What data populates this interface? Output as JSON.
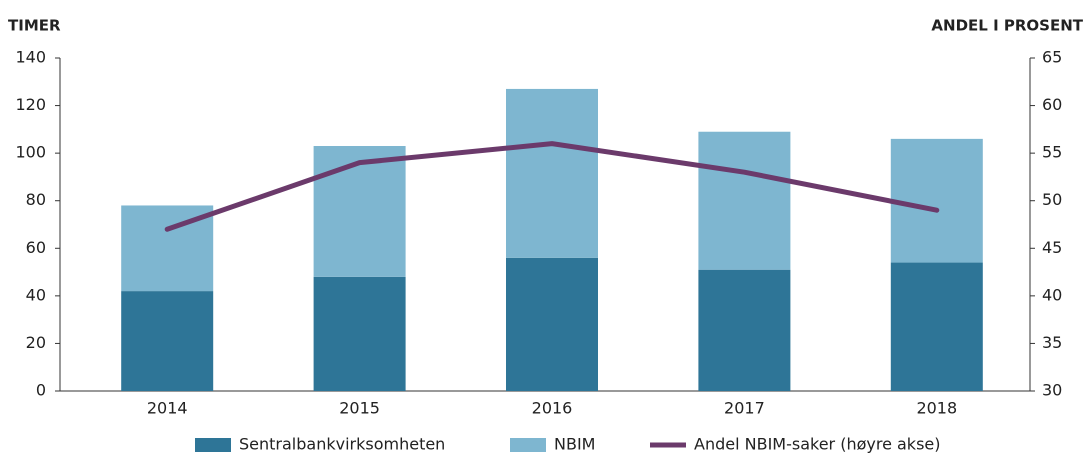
{
  "chart_data": {
    "type": "bar",
    "y_label": "TIMER",
    "y2_label": "ANDEL I PROSENT",
    "categories": [
      "2014",
      "2015",
      "2016",
      "2017",
      "2018"
    ],
    "stacked": true,
    "series": [
      {
        "name": "Sentralbankvirksomheten",
        "color": "#2e7597",
        "values": [
          42,
          48,
          56,
          51,
          54
        ]
      },
      {
        "name": "NBIM",
        "color": "#7eb6d0",
        "values": [
          36,
          55,
          71,
          58,
          52
        ]
      },
      {
        "name": "Andel NBIM-saker (høyre akse)",
        "color": "#6b3a6b",
        "type": "line",
        "axis": "y2",
        "values": [
          47,
          54,
          56,
          53,
          49
        ]
      }
    ],
    "ylim": [
      0,
      140
    ],
    "yticks": [
      0,
      20,
      40,
      60,
      80,
      100,
      120,
      140
    ],
    "y2lim": [
      30,
      65
    ],
    "y2ticks": [
      30,
      35,
      40,
      45,
      50,
      55,
      60,
      65
    ],
    "grid": false,
    "legend": "bottom"
  }
}
